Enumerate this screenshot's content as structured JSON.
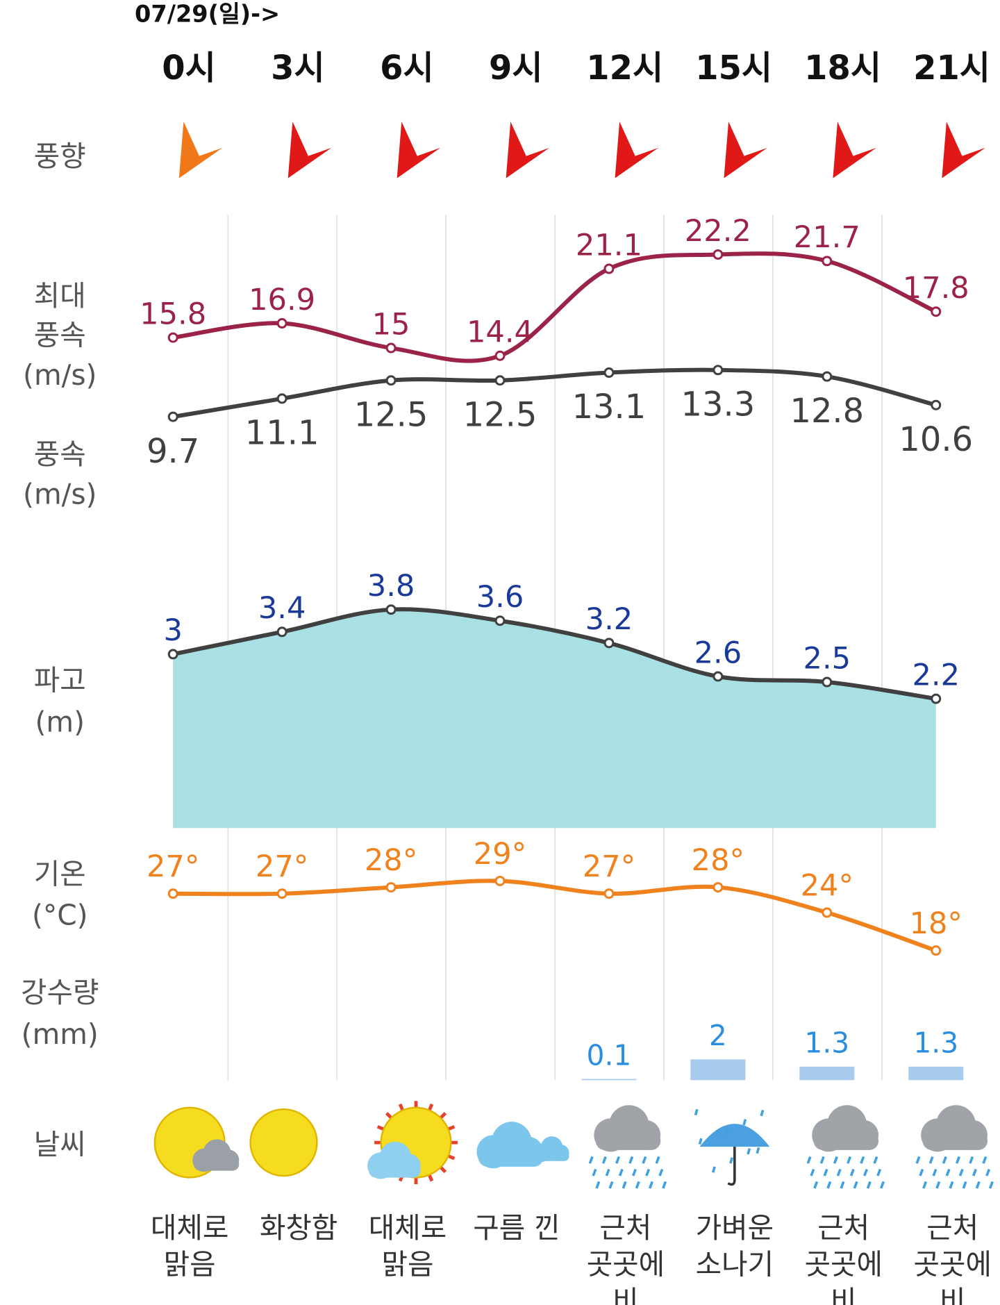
{
  "header": {
    "date": "07/29(일)->"
  },
  "hours": [
    "0시",
    "3시",
    "6시",
    "9시",
    "12시",
    "15시",
    "18시",
    "21시"
  ],
  "row_labels": [
    [
      "풍향"
    ],
    [
      "최대",
      "풍속",
      "(m/s)"
    ],
    [
      "풍속",
      "(m/s)"
    ],
    [
      "파고",
      "(m)"
    ],
    [
      "기온",
      "(°C)"
    ],
    [
      "강수량",
      "(mm)"
    ],
    [
      "날씨"
    ]
  ],
  "wind_direction": {
    "colors": [
      "#f07818",
      "#e01818",
      "#e01818",
      "#e01818",
      "#e01818",
      "#e01818",
      "#e01818",
      "#e01818"
    ]
  },
  "chart_data": [
    {
      "type": "line",
      "values": [
        15.8,
        16.9,
        15,
        14.4,
        21.1,
        22.2,
        21.7,
        17.8
      ],
      "color": "#9b2347"
    },
    {
      "type": "line",
      "values": [
        9.7,
        11.1,
        12.5,
        12.5,
        13.1,
        13.3,
        12.8,
        10.6
      ],
      "color": "#404040"
    },
    {
      "type": "area",
      "values": [
        3,
        3.4,
        3.8,
        3.6,
        3.2,
        2.6,
        2.5,
        2.2
      ],
      "color": "#404040",
      "fill_color": "#a8e0e4",
      "label_color": "#1a3a9a"
    },
    {
      "type": "line",
      "values": [
        27,
        27,
        28,
        29,
        27,
        28,
        24,
        18
      ],
      "value_labels": [
        "27°",
        "27°",
        "28°",
        "29°",
        "27°",
        "28°",
        "24°",
        "18°"
      ],
      "color": "#f0821e"
    },
    {
      "type": "bar",
      "values": [
        null,
        null,
        null,
        null,
        0.1,
        2,
        1.3,
        1.3
      ],
      "color": "#a8ccee",
      "label_color": "#2a8ee0"
    }
  ],
  "weather": [
    [
      "대체로",
      "맑음"
    ],
    [
      "화창함"
    ],
    [
      "대체로",
      "맑음"
    ],
    [
      "구름 낀"
    ],
    [
      "근처",
      "곳곳에",
      "비"
    ],
    [
      "가벼운",
      "소나기"
    ],
    [
      "근처",
      "곳곳에",
      "비"
    ],
    [
      "근처",
      "곳곳에",
      "비"
    ]
  ]
}
